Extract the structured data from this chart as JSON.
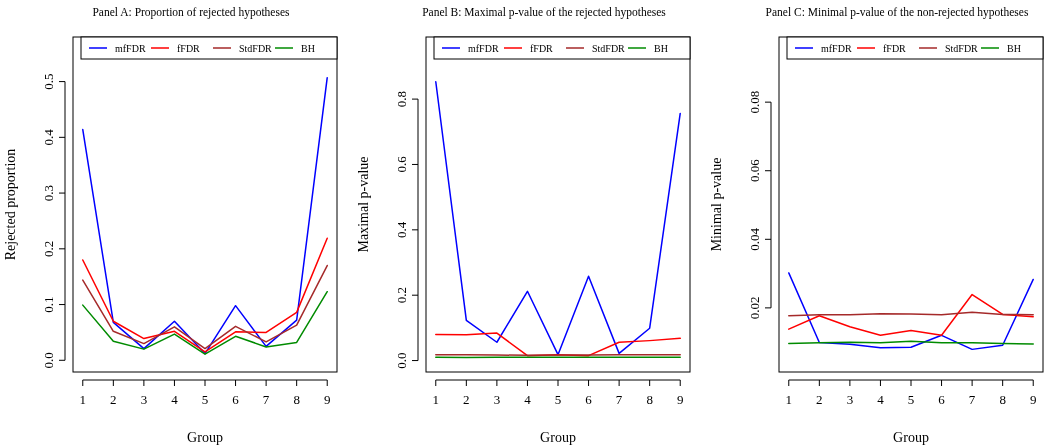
{
  "chart_data": [
    {
      "type": "line",
      "title": "Panel A: Proportion of rejected hypotheses",
      "xlabel": "Group",
      "ylabel": "Rejected proportion",
      "x": [
        1,
        2,
        3,
        4,
        5,
        6,
        7,
        8,
        9
      ],
      "xlim": [
        0.68,
        9.32
      ],
      "xticks": [
        1,
        2,
        3,
        4,
        5,
        6,
        7,
        8,
        9
      ],
      "ylim": [
        -0.021,
        0.58
      ],
      "yticks": [
        {
          "value": 0,
          "label": "0.0"
        },
        0.1,
        0.2,
        0.3,
        0.4,
        0.5
      ],
      "legend": "top",
      "series": [
        {
          "name": "mfFDR",
          "color": "#0000ff",
          "values": [
            0.414,
            0.068,
            0.021,
            0.07,
            0.012,
            0.098,
            0.025,
            0.072,
            0.507
          ]
        },
        {
          "name": "fFDR",
          "color": "#ff0000",
          "values": [
            0.18,
            0.07,
            0.039,
            0.052,
            0.015,
            0.051,
            0.05,
            0.086,
            0.219
          ]
        },
        {
          "name": "StdFDR",
          "color": "#a52a2a",
          "values": [
            0.144,
            0.052,
            0.03,
            0.06,
            0.021,
            0.061,
            0.033,
            0.063,
            0.17
          ]
        },
        {
          "name": "BH",
          "color": "#008b00",
          "values": [
            0.099,
            0.034,
            0.02,
            0.047,
            0.011,
            0.043,
            0.024,
            0.032,
            0.123
          ]
        }
      ]
    },
    {
      "type": "line",
      "title": "Panel B: Maximal p-value of the rejected hypotheses",
      "xlabel": "Group",
      "ylabel": "Maximal p-value",
      "x": [
        1,
        2,
        3,
        4,
        5,
        6,
        7,
        8,
        9
      ],
      "xlim": [
        0.68,
        9.32
      ],
      "xticks": [
        1,
        2,
        3,
        4,
        5,
        6,
        7,
        8,
        9
      ],
      "ylim": [
        -0.035,
        0.99
      ],
      "yticks": [
        {
          "value": 0,
          "label": "0.0"
        },
        0.2,
        0.4,
        0.6,
        0.8
      ],
      "legend": "top",
      "series": [
        {
          "name": "mfFDR",
          "color": "#0000ff",
          "values": [
            0.853,
            0.123,
            0.056,
            0.212,
            0.018,
            0.258,
            0.022,
            0.099,
            0.756
          ]
        },
        {
          "name": "fFDR",
          "color": "#ff0000",
          "values": [
            0.08,
            0.079,
            0.084,
            0.015,
            0.018,
            0.015,
            0.056,
            0.061,
            0.068
          ]
        },
        {
          "name": "StdFDR",
          "color": "#a52a2a",
          "values": [
            0.018,
            0.018,
            0.017,
            0.016,
            0.017,
            0.017,
            0.018,
            0.018,
            0.018
          ]
        },
        {
          "name": "BH",
          "color": "#008b00",
          "values": [
            0.01,
            0.009,
            0.01,
            0.01,
            0.01,
            0.01,
            0.01,
            0.01,
            0.01
          ]
        }
      ]
    },
    {
      "type": "line",
      "title": "Panel C: Minimal p-value of the non-rejected hypotheses",
      "xlabel": "Group",
      "ylabel": "Minimal p-value",
      "x": [
        1,
        2,
        3,
        4,
        5,
        6,
        7,
        8,
        9
      ],
      "xlim": [
        0.68,
        9.32
      ],
      "xticks": [
        1,
        2,
        3,
        4,
        5,
        6,
        7,
        8,
        9
      ],
      "ylim": [
        0.0013,
        0.099
      ],
      "yticks": [
        0.02,
        0.04,
        0.06,
        0.08
      ],
      "legend": "top",
      "series": [
        {
          "name": "mfFDR",
          "color": "#0000ff",
          "values": [
            0.0302,
            0.0099,
            0.0094,
            0.0084,
            0.0085,
            0.012,
            0.0079,
            0.0091,
            0.0283
          ]
        },
        {
          "name": "fFDR",
          "color": "#ff0000",
          "values": [
            0.0138,
            0.0177,
            0.0145,
            0.012,
            0.0134,
            0.012,
            0.0239,
            0.0181,
            0.0174
          ]
        },
        {
          "name": "StdFDR",
          "color": "#a52a2a",
          "values": [
            0.0177,
            0.018,
            0.018,
            0.0183,
            0.0182,
            0.018,
            0.0187,
            0.0181,
            0.018
          ]
        },
        {
          "name": "BH",
          "color": "#008b00",
          "values": [
            0.0096,
            0.0098,
            0.01,
            0.0098,
            0.0103,
            0.0098,
            0.0098,
            0.0096,
            0.0095
          ]
        }
      ]
    }
  ]
}
